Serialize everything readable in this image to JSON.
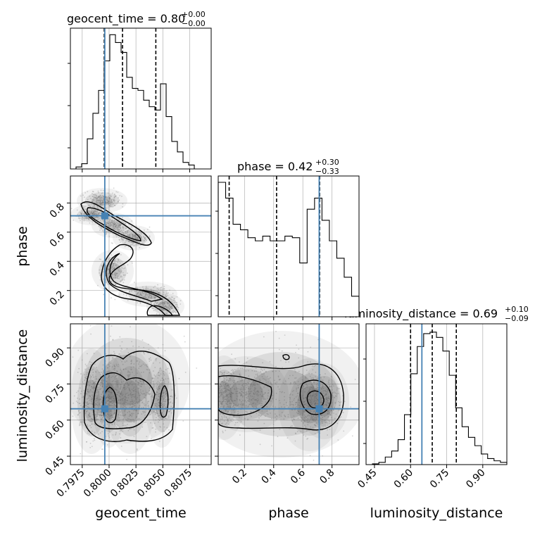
{
  "chart_data": {
    "type": "corner",
    "parameters": [
      "geocent_time",
      "phase",
      "luminosity_distance"
    ],
    "axis_labels": {
      "geocent_time": "geocent_time",
      "phase": "phase",
      "luminosity_distance": "luminosity_distance"
    },
    "titles": [
      {
        "param": "geocent_time",
        "label": "geocent_time = 0.80",
        "upper": "+0.00",
        "lower": "−0.00"
      },
      {
        "param": "phase",
        "label": "phase = 0.42",
        "upper": "+0.30",
        "lower": "−0.33"
      },
      {
        "param": "luminosity_distance",
        "label": "luminosity_distance = 0.69",
        "upper": "+0.10",
        "lower": "−0.09"
      }
    ],
    "ranges": {
      "geocent_time": [
        0.7964,
        0.8095
      ],
      "phase": [
        0.02,
        0.985
      ],
      "luminosity_distance": [
        0.415,
        1.0
      ]
    },
    "ticks": {
      "geocent_time": [
        "0.7975",
        "0.8000",
        "0.8025",
        "0.8050",
        "0.8075"
      ],
      "phase": [
        "0.2",
        "0.4",
        "0.6",
        "0.8"
      ],
      "luminosity_distance": [
        "0.45",
        "0.60",
        "0.75",
        "0.90"
      ]
    },
    "injection": {
      "geocent_time": 0.7996,
      "phase": 0.712,
      "luminosity_distance": 0.647
    },
    "quantiles": {
      "geocent_time": [
        0.79955,
        0.80125,
        0.80435
      ],
      "phase": [
        0.095,
        0.42,
        0.715
      ],
      "luminosity_distance": [
        0.6,
        0.69,
        0.79
      ]
    },
    "histograms": {
      "geocent_time": {
        "counts": [
          0,
          3,
          8,
          46,
          85,
          120,
          165,
          205,
          193,
          178,
          140,
          123,
          120,
          105,
          95,
          90,
          130,
          80,
          42,
          26,
          10,
          6,
          0,
          0,
          0
        ],
        "ymax": 215
      },
      "phase": {
        "counts": [
          170,
          150,
          117,
          110,
          100,
          96,
          102,
          96,
          96,
          102,
          100,
          68,
          136,
          150,
          122,
          96,
          74,
          50,
          26
        ],
        "ymax": 178
      },
      "luminosity_distance": {
        "counts": [
          0,
          1,
          3,
          10,
          18,
          33,
          66,
          120,
          156,
          173,
          175,
          168,
          150,
          118,
          75,
          50,
          36,
          25,
          14,
          8,
          5,
          3
        ],
        "ymax": 186
      }
    },
    "grid": true
  }
}
